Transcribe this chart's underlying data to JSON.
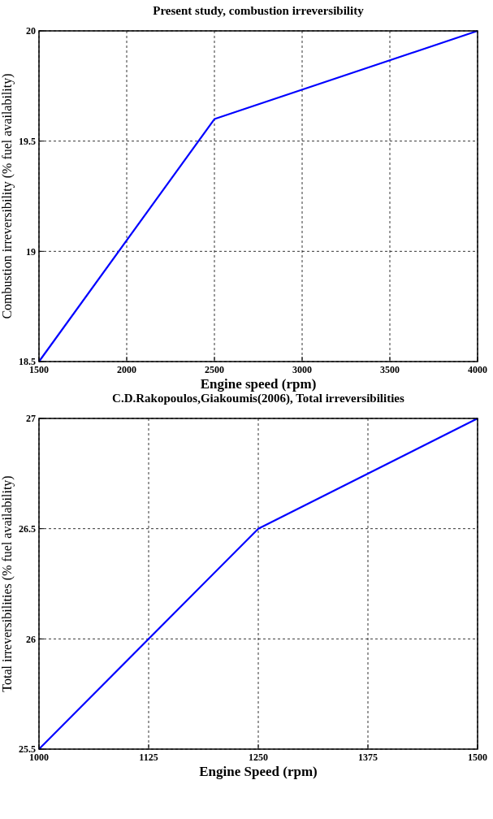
{
  "chart_data": [
    {
      "type": "line",
      "title": "Present study, combustion irreversibility",
      "xlabel": "Engine speed (rpm)",
      "ylabel": "Combustion irreversibility (% fuel availability)",
      "x": [
        1500,
        2500,
        4000
      ],
      "series": [
        {
          "color": "#0000ff",
          "values": [
            18.5,
            19.6,
            20.0
          ]
        }
      ],
      "xlim": [
        1500,
        4000
      ],
      "xticks": [
        1500,
        2000,
        2500,
        3000,
        3500,
        4000
      ],
      "ylim": [
        18.5,
        20
      ],
      "yticks": [
        18.5,
        19,
        19.5,
        20
      ],
      "grid": true,
      "line_style": "solid"
    },
    {
      "type": "line",
      "title": "C.D.Rakopoulos,Giakoumis(2006), Total irreversibilities",
      "xlabel": "Engine Speed (rpm)",
      "ylabel": "Total irreversibilities (% fuel availability)",
      "x": [
        1000,
        1250,
        1500
      ],
      "series": [
        {
          "color": "#0000ff",
          "values": [
            25.5,
            26.5,
            27.0
          ]
        }
      ],
      "xlim": [
        1000,
        1500
      ],
      "xticks": [
        1000,
        1125,
        1250,
        1375,
        1500
      ],
      "ylim": [
        25.5,
        27
      ],
      "yticks": [
        25.5,
        26,
        26.5,
        27
      ],
      "grid": true,
      "line_style": "solid"
    }
  ]
}
